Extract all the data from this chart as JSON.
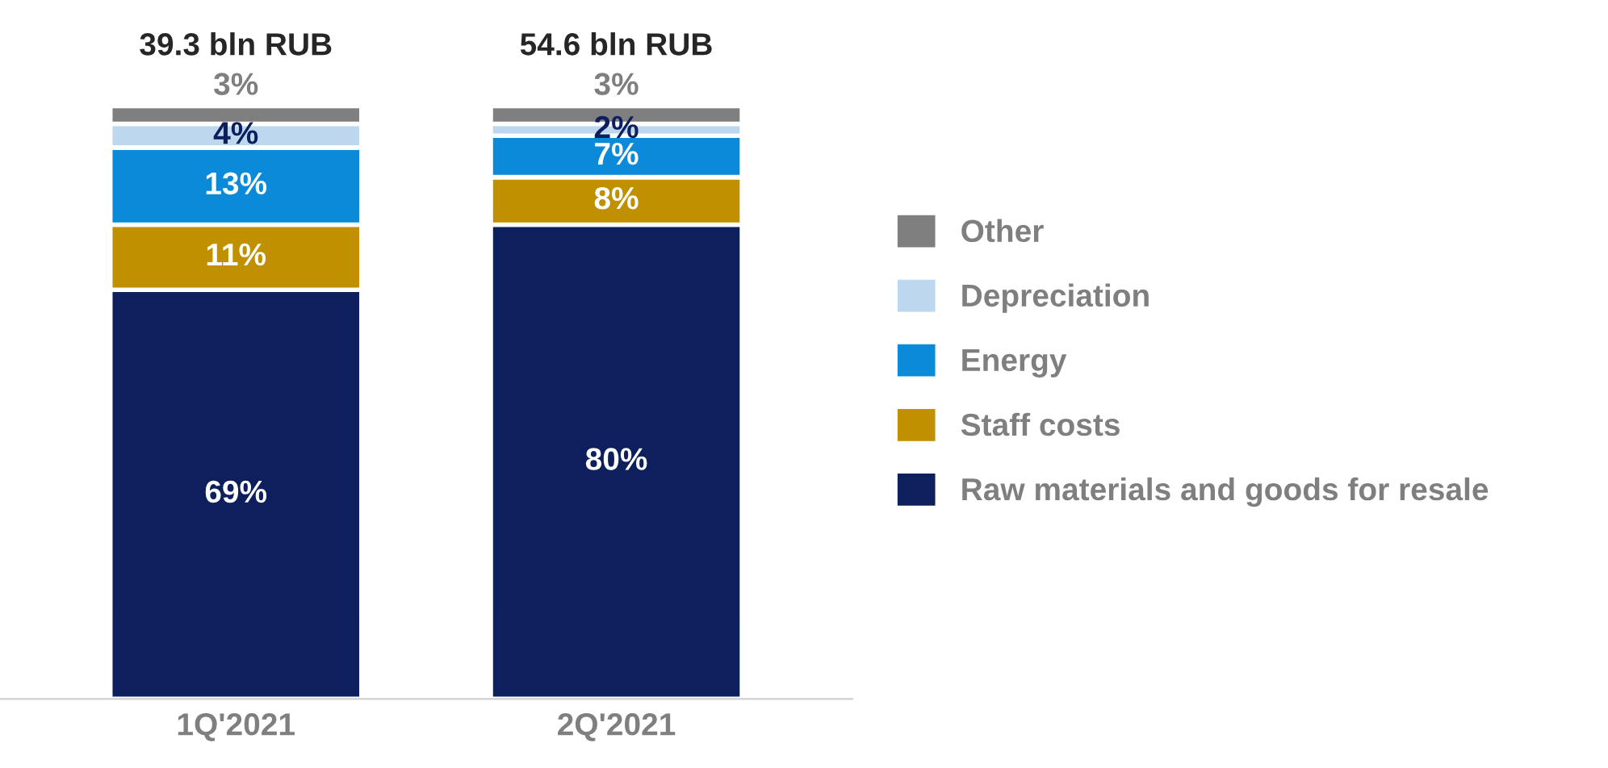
{
  "chart_data": {
    "type": "bar",
    "stacked": true,
    "categories": [
      "1Q'2021",
      "2Q'2021"
    ],
    "series": [
      {
        "name": "Raw materials and goods for resale",
        "color": "#0d1f5c",
        "values": [
          69,
          80
        ],
        "value_labels": [
          "69%",
          "80%"
        ]
      },
      {
        "name": "Staff costs",
        "color": "#c09000",
        "values": [
          11,
          8
        ],
        "value_labels": [
          "11%",
          "8%"
        ]
      },
      {
        "name": "Energy",
        "color": "#0a8ad8",
        "values": [
          13,
          7
        ],
        "value_labels": [
          "13%",
          "7%"
        ]
      },
      {
        "name": "Depreciation",
        "color": "#bdd7ee",
        "values": [
          4,
          2
        ],
        "value_labels": [
          "4%",
          "2%"
        ]
      },
      {
        "name": "Other",
        "color": "#7f7f7f",
        "values": [
          3,
          3
        ],
        "value_labels": [
          "3%",
          "3%"
        ]
      }
    ],
    "annotations": [
      {
        "text": "39.3 bln RUB",
        "x": "1Q'2021",
        "y": 100
      },
      {
        "text": "54.6 bln RUB",
        "x": "2Q'2021",
        "y": 100
      }
    ],
    "legend": "right"
  }
}
